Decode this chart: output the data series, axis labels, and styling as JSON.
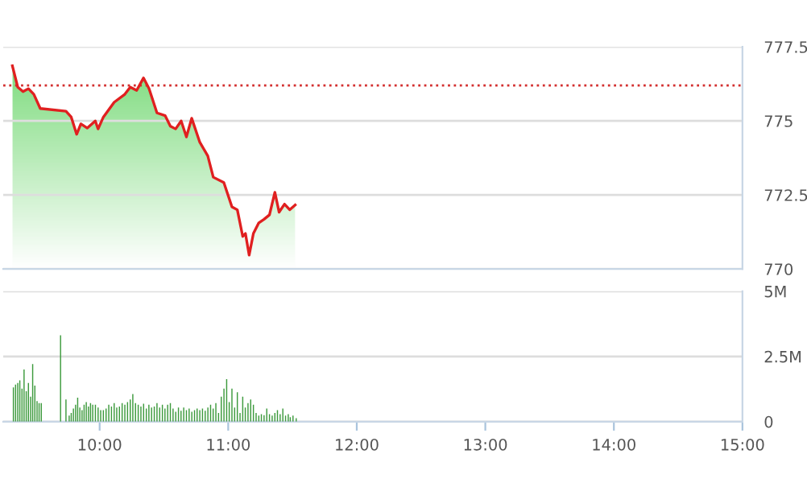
{
  "chart_data": [
    {
      "type": "line",
      "tick_labels": "y",
      "xlim": [
        9.25,
        15
      ],
      "ylim": [
        770,
        777.5
      ],
      "yticks": [
        770,
        772.5,
        775,
        777.5
      ],
      "grid": "y",
      "ref_lines": [
        {
          "axis": "y",
          "value": 776.2,
          "color": "#d32f2f",
          "line_style": "dotted"
        }
      ],
      "series": [
        {
          "color": "#e02020",
          "x": [
            9.321,
            9.363,
            9.404,
            9.446,
            9.488,
            9.538,
            9.738,
            9.779,
            9.821,
            9.854,
            9.904,
            9.966,
            9.988,
            10.029,
            10.113,
            10.196,
            10.238,
            10.288,
            10.341,
            10.384,
            10.446,
            10.509,
            10.55,
            10.591,
            10.634,
            10.675,
            10.716,
            10.779,
            10.841,
            10.884,
            10.966,
            11.029,
            11.071,
            11.113,
            11.134,
            11.163,
            11.196,
            11.238,
            11.279,
            11.321,
            11.363,
            11.396,
            11.438,
            11.479,
            11.521
          ],
          "values": [
            776.86,
            776.14,
            775.99,
            776.09,
            775.9,
            775.42,
            775.33,
            775.13,
            774.55,
            774.9,
            774.76,
            775.0,
            774.73,
            775.13,
            775.63,
            775.9,
            776.14,
            776.03,
            776.45,
            776.09,
            775.27,
            775.18,
            774.82,
            774.73,
            775.0,
            774.46,
            775.09,
            774.28,
            773.82,
            773.1,
            772.92,
            772.1,
            772.0,
            771.1,
            771.2,
            770.47,
            771.2,
            771.56,
            771.68,
            771.83,
            772.59,
            771.92,
            772.19,
            772.0,
            772.16
          ]
        }
      ]
    },
    {
      "type": "bar",
      "xlim": [
        9.25,
        15
      ],
      "xticks": [
        {
          "value": 10,
          "label": "10:00"
        },
        {
          "value": 11,
          "label": "11:00"
        },
        {
          "value": 12,
          "label": "12:00"
        },
        {
          "value": 13,
          "label": "13:00"
        },
        {
          "value": 14,
          "label": "14:00"
        },
        {
          "value": 15,
          "label": "15:00"
        }
      ],
      "ylim": [
        0,
        5
      ],
      "yticks": [
        0,
        {
          "value": 2.5,
          "label": "2.5M"
        },
        {
          "value": 5,
          "label": "5M"
        }
      ],
      "grid": "y",
      "series": [
        {
          "color": "#3d9a3d",
          "x": [
            9.329,
            9.346,
            9.363,
            9.379,
            9.396,
            9.412,
            9.429,
            9.446,
            9.463,
            9.479,
            9.496,
            9.513,
            9.529,
            9.546,
            9.696,
            9.738,
            9.763,
            9.779,
            9.796,
            9.813,
            9.829,
            9.846,
            9.863,
            9.879,
            9.896,
            9.913,
            9.929,
            9.946,
            9.967,
            9.988,
            10.008,
            10.029,
            10.05,
            10.071,
            10.092,
            10.113,
            10.133,
            10.154,
            10.175,
            10.196,
            10.217,
            10.238,
            10.258,
            10.279,
            10.3,
            10.321,
            10.342,
            10.363,
            10.383,
            10.404,
            10.425,
            10.446,
            10.467,
            10.488,
            10.508,
            10.529,
            10.55,
            10.571,
            10.592,
            10.613,
            10.633,
            10.654,
            10.675,
            10.696,
            10.717,
            10.738,
            10.758,
            10.779,
            10.8,
            10.821,
            10.842,
            10.863,
            10.883,
            10.904,
            10.925,
            10.946,
            10.967,
            10.988,
            11.008,
            11.029,
            11.05,
            11.071,
            11.092,
            11.113,
            11.133,
            11.154,
            11.175,
            11.196,
            11.217,
            11.238,
            11.258,
            11.279,
            11.3,
            11.321,
            11.342,
            11.363,
            11.383,
            11.404,
            11.425,
            11.446,
            11.467,
            11.483,
            11.504,
            11.529
          ],
          "values": [
            1.31,
            1.42,
            1.48,
            1.58,
            1.27,
            2.0,
            1.17,
            1.48,
            0.96,
            2.21,
            1.38,
            0.79,
            0.71,
            0.71,
            3.31,
            0.85,
            0.23,
            0.33,
            0.5,
            0.65,
            0.92,
            0.54,
            0.44,
            0.65,
            0.75,
            0.58,
            0.71,
            0.65,
            0.65,
            0.54,
            0.44,
            0.44,
            0.5,
            0.65,
            0.58,
            0.71,
            0.54,
            0.58,
            0.71,
            0.65,
            0.75,
            0.85,
            1.06,
            0.71,
            0.65,
            0.58,
            0.69,
            0.5,
            0.65,
            0.54,
            0.58,
            0.71,
            0.54,
            0.65,
            0.5,
            0.65,
            0.71,
            0.5,
            0.38,
            0.54,
            0.42,
            0.54,
            0.44,
            0.5,
            0.38,
            0.44,
            0.5,
            0.44,
            0.5,
            0.42,
            0.54,
            0.65,
            0.5,
            0.71,
            0.33,
            0.96,
            1.27,
            1.63,
            0.75,
            1.27,
            0.54,
            1.13,
            0.33,
            0.96,
            0.54,
            0.71,
            0.85,
            0.65,
            0.33,
            0.23,
            0.29,
            0.25,
            0.5,
            0.29,
            0.23,
            0.33,
            0.44,
            0.29,
            0.5,
            0.23,
            0.29,
            0.17,
            0.23,
            0.13
          ]
        }
      ]
    }
  ]
}
